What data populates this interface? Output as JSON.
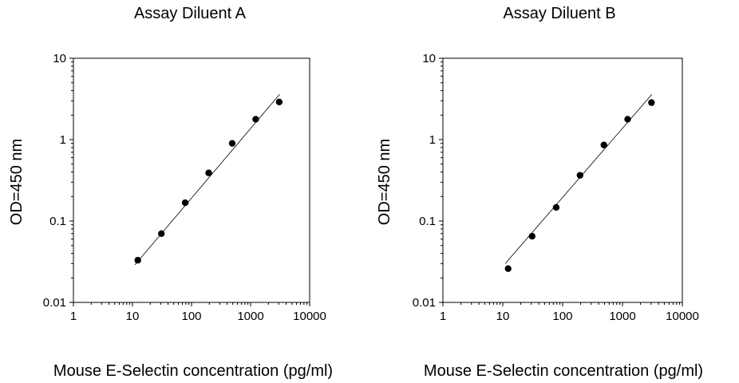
{
  "chart_data": [
    {
      "type": "scatter",
      "title": "Assay Diluent A",
      "xlabel": "Mouse E-Selectin concentration (pg/ml)",
      "ylabel": "OD=450 nm",
      "xscale": "log",
      "yscale": "log",
      "xlim": [
        1,
        10000
      ],
      "ylim": [
        0.01,
        10
      ],
      "xticks": [
        "1",
        "10",
        "100",
        "1000",
        "10000"
      ],
      "yticks": [
        "0.01",
        "0.1",
        "1",
        "10"
      ],
      "grid": false,
      "legend": "none",
      "series": [
        {
          "x": [
            12.3,
            30.9,
            78.1,
            195.3,
            488.3,
            1220.7,
            3051.8
          ],
          "y": [
            0.033,
            0.07,
            0.168,
            0.39,
            0.9,
            1.78,
            2.9
          ]
        }
      ],
      "fit_line": {
        "x": [
          11,
          3100
        ],
        "y": [
          0.029,
          3.6
        ]
      }
    },
    {
      "type": "scatter",
      "title": "Assay Diluent B",
      "xlabel": "Mouse E-Selectin concentration (pg/ml)",
      "ylabel": "OD=450 nm",
      "xscale": "log",
      "yscale": "log",
      "xlim": [
        1,
        10000
      ],
      "ylim": [
        0.01,
        10
      ],
      "xticks": [
        "1",
        "10",
        "100",
        "1000",
        "10000"
      ],
      "yticks": [
        "0.01",
        "0.1",
        "1",
        "10"
      ],
      "grid": false,
      "legend": "none",
      "series": [
        {
          "x": [
            12.3,
            30.9,
            78.1,
            195.3,
            488.3,
            1220.7,
            3051.8
          ],
          "y": [
            0.026,
            0.065,
            0.147,
            0.365,
            0.86,
            1.78,
            2.85
          ]
        }
      ],
      "fit_line": {
        "x": [
          11,
          3100
        ],
        "y": [
          0.03,
          3.6
        ]
      }
    }
  ]
}
